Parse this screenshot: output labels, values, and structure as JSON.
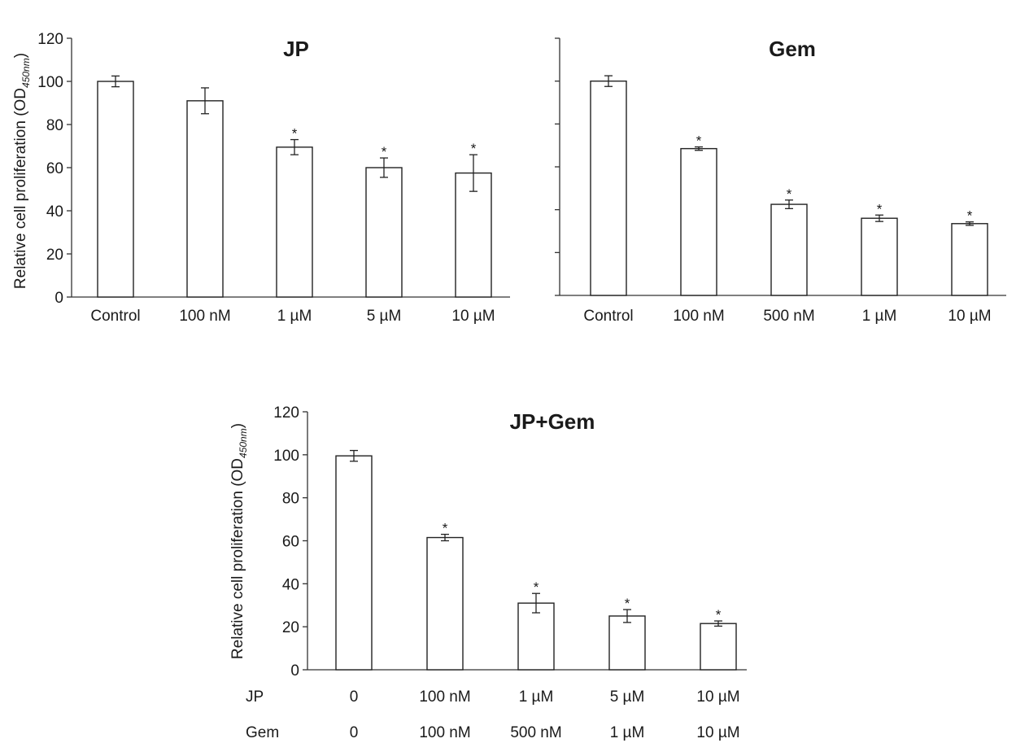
{
  "chart_data": [
    {
      "type": "bar",
      "title": "JP",
      "ylabel": "Relative cell proliferation (OD",
      "ylabel_subscript": "450nm",
      "ylabel_close": ")",
      "ylim": [
        0,
        120
      ],
      "yticks": [
        "0",
        "20",
        "40",
        "60",
        "80",
        "100",
        "120"
      ],
      "categories": [
        "Control",
        "100 nM",
        "1 µM",
        "5 µM",
        "10 µM"
      ],
      "values": [
        100,
        91,
        69.5,
        60,
        57.5
      ],
      "errors": [
        2.5,
        6,
        3.5,
        4.5,
        8.5
      ],
      "significance": [
        "",
        "",
        "*",
        "*",
        "*"
      ],
      "grid": false,
      "legend": "none"
    },
    {
      "type": "bar",
      "title": "Gem",
      "ylim": [
        0,
        120
      ],
      "show_tick_labels": false,
      "categories": [
        "Control",
        "100 nM",
        "500 nM",
        "1 µM",
        "10 µM"
      ],
      "values": [
        100,
        68.5,
        42.5,
        36,
        33.5
      ],
      "errors": [
        2.5,
        0.8,
        2,
        1.5,
        0.8
      ],
      "significance": [
        "",
        "*",
        "*",
        "*",
        "*"
      ],
      "grid": false,
      "legend": "none"
    },
    {
      "type": "bar",
      "title": "JP+Gem",
      "ylabel": "Relative cell proliferation (OD",
      "ylabel_subscript": "450nm",
      "ylabel_close": ")",
      "ylim": [
        0,
        120
      ],
      "yticks": [
        "0",
        "20",
        "40",
        "60",
        "80",
        "100",
        "120"
      ],
      "row_labels": [
        "JP",
        "Gem"
      ],
      "categories": [
        [
          "0",
          "0"
        ],
        [
          "100 nM",
          "100 nM"
        ],
        [
          "1 µM",
          "500 nM"
        ],
        [
          "5 µM",
          "1 µM"
        ],
        [
          "10 µM",
          "10 µM"
        ]
      ],
      "values": [
        99.5,
        61.5,
        31,
        25,
        21.5
      ],
      "errors": [
        2.5,
        1.5,
        4.5,
        3,
        1.2
      ],
      "significance": [
        "",
        "*",
        "*",
        "*",
        "*"
      ],
      "grid": false,
      "legend": "none"
    }
  ]
}
